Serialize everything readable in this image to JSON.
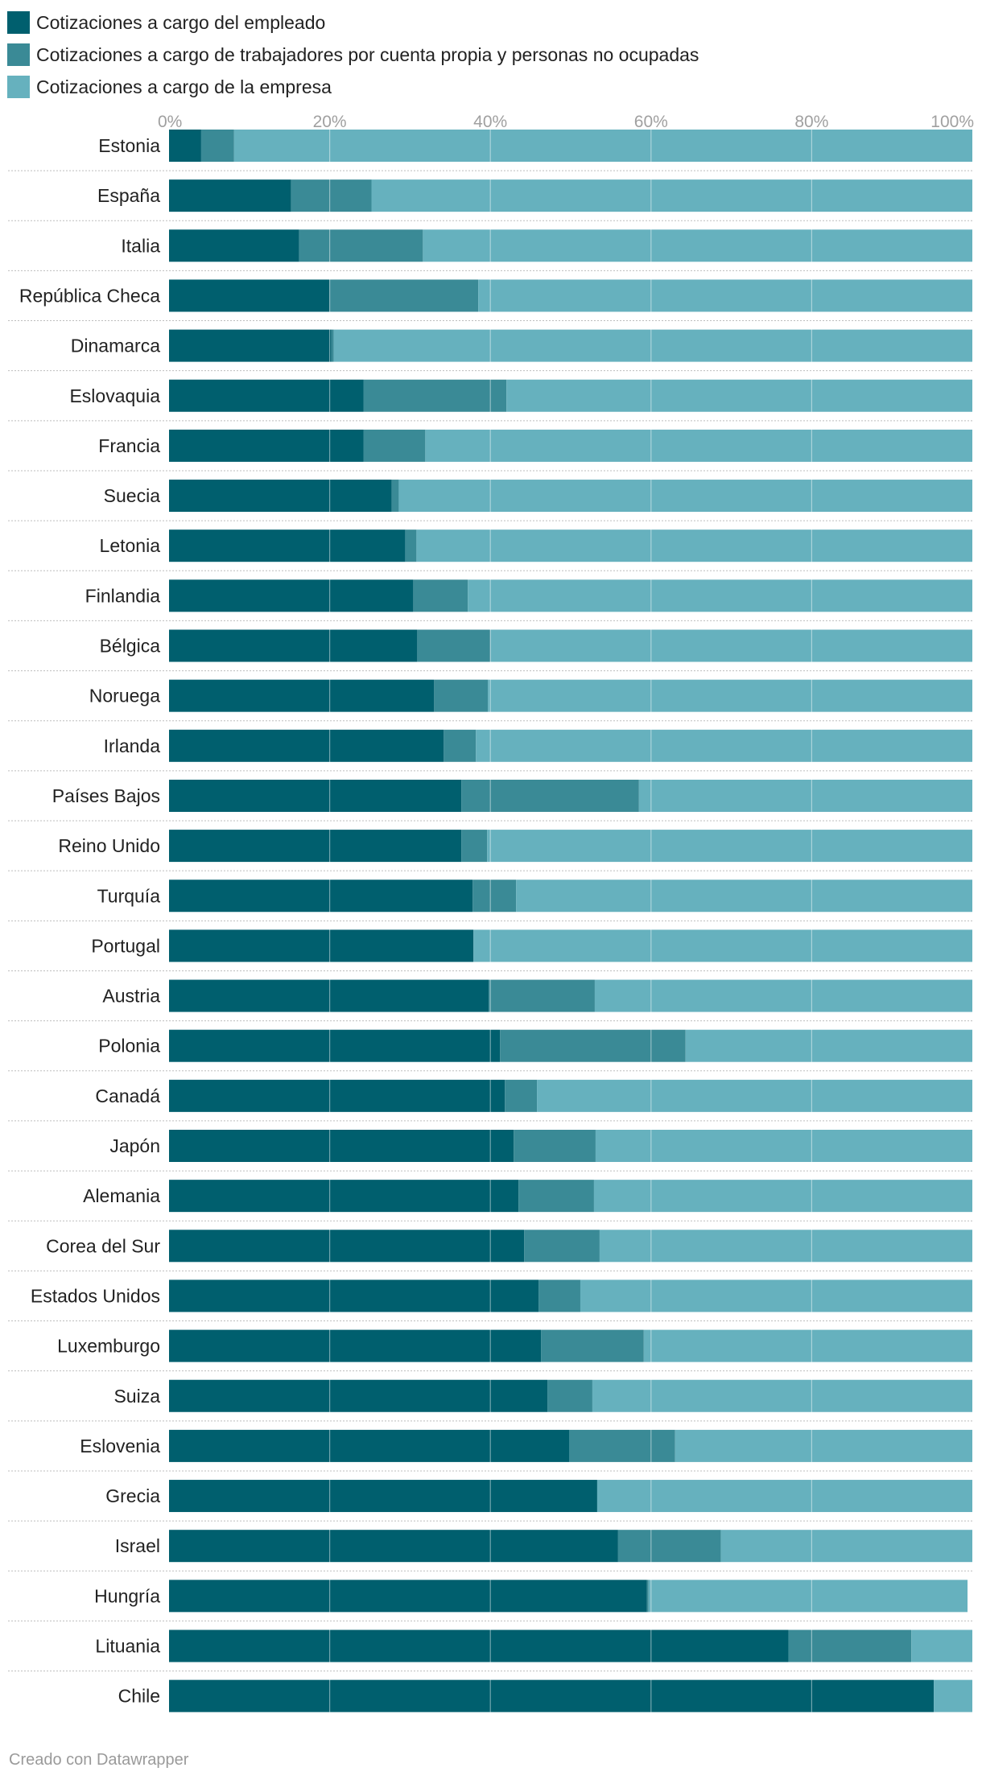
{
  "chart_data": {
    "type": "bar",
    "orientation": "horizontal",
    "stacked": true,
    "title": "",
    "xlabel": "",
    "ylabel": "",
    "xlim": [
      0,
      100
    ],
    "ticks": [
      "0%",
      "20%",
      "40%",
      "60%",
      "80%",
      "100%"
    ],
    "tick_values": [
      0,
      20,
      40,
      60,
      80,
      100
    ],
    "legend_position": "top-left",
    "categories": [
      "Estonia",
      "España",
      "Italia",
      "República Checa",
      "Dinamarca",
      "Eslovaquia",
      "Francia",
      "Suecia",
      "Letonia",
      "Finlandia",
      "Bélgica",
      "Noruega",
      "Irlanda",
      "Países Bajos",
      "Reino Unido",
      "Turquía",
      "Portugal",
      "Austria",
      "Polonia",
      "Canadá",
      "Japón",
      "Alemania",
      "Corea del Sur",
      "Estados Unidos",
      "Luxemburgo",
      "Suiza",
      "Eslovenia",
      "Grecia",
      "Israel",
      "Hungría",
      "Lituania",
      "Chile"
    ],
    "series": [
      {
        "name": "Cotizaciones a cargo del empleado",
        "color": "#005f6e",
        "values": [
          4,
          15.2,
          16.2,
          20,
          20.2,
          24.2,
          24.2,
          27.7,
          29.4,
          30.4,
          30.9,
          33,
          34.2,
          36.4,
          36.4,
          37.8,
          37.9,
          39.8,
          41.2,
          41.8,
          42.9,
          43.5,
          44.2,
          46,
          46.3,
          47.1,
          49.8,
          53.3,
          55.9,
          59.5,
          77.1,
          95.2
        ]
      },
      {
        "name": "Cotizaciones a cargo de trabajadores por cuenta propia y personas no ocupadas",
        "color": "#3a8a96",
        "values": [
          4.1,
          10,
          15.4,
          18.5,
          0.3,
          17.8,
          7.7,
          0.9,
          1.4,
          6.8,
          9.1,
          6.7,
          4,
          22.1,
          3.2,
          5.4,
          0,
          13.2,
          23.1,
          4,
          10.2,
          9.4,
          9.4,
          5.2,
          12.8,
          5.6,
          13.2,
          0,
          12.8,
          0.2,
          15.3,
          0
        ]
      },
      {
        "name": "Cotizaciones a cargo de la empresa",
        "color": "#66b1be",
        "values": [
          91.9,
          74.8,
          68.4,
          61.5,
          79.5,
          58,
          68.1,
          71.4,
          69.2,
          62.8,
          60,
          60.3,
          61.8,
          41.5,
          60.4,
          56.8,
          62.1,
          47,
          35.7,
          54.2,
          46.9,
          47.1,
          46.4,
          48.8,
          40.9,
          47.3,
          37,
          46.7,
          31.3,
          39.7,
          7.6,
          4.8
        ]
      }
    ]
  },
  "footer": {
    "credit": "Creado con Datawrapper"
  }
}
